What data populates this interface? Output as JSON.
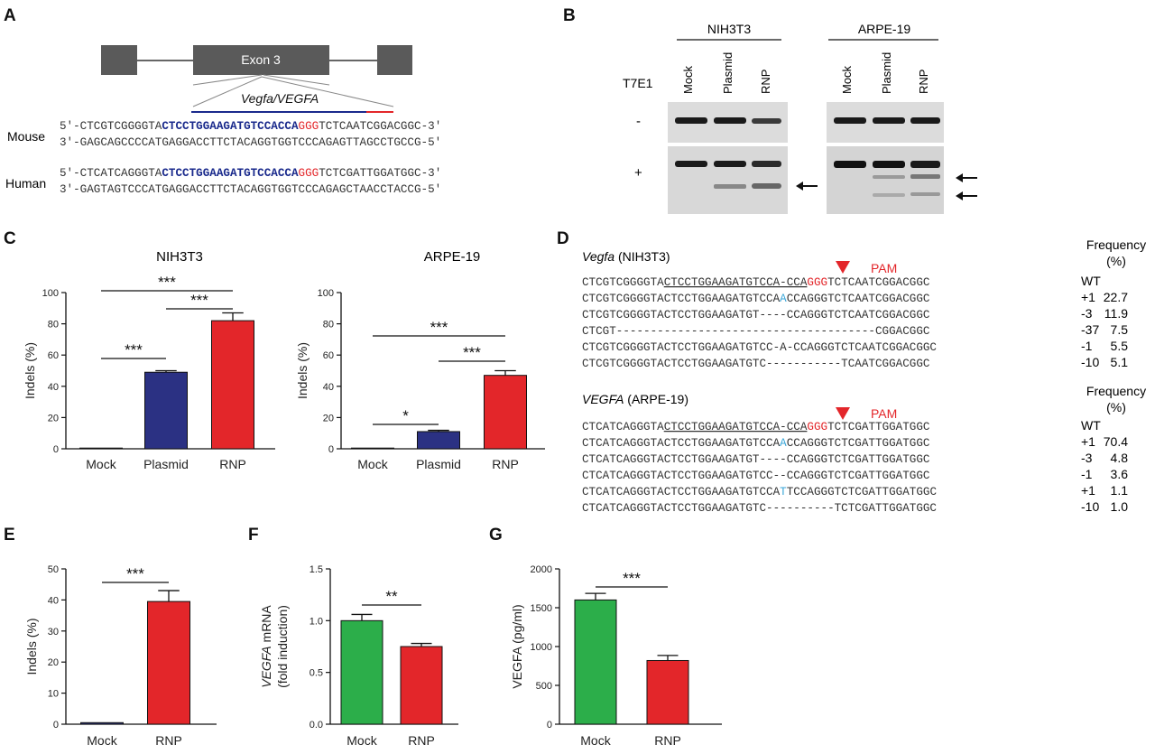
{
  "panel_labels": [
    "A",
    "B",
    "C",
    "D",
    "E",
    "F",
    "G"
  ],
  "colors": {
    "blue": "#2b3183",
    "red": "#e3262a",
    "green": "#2cae4a",
    "seq_blue": "#1a2a8c",
    "pam_red": "#e3262a",
    "insert_blue": "#3aa6d8",
    "exon_gray": "#5a5a5a"
  },
  "panelA": {
    "exon_label": "Exon 3",
    "gene_label": "Vegfa/VEGFA",
    "species": [
      "Mouse",
      "Human"
    ],
    "mouse": {
      "top": {
        "prefix": "5′-CTCGTCGGGGTA",
        "target": "CTCCTGGAAGATGTCCACCA",
        "pam": "GGG",
        "suffix": "TCTCAATCGGACGGC-3′"
      },
      "bottom": "3′-GAGCAGCCCCATGAGGACCTTCTACAGGTGGTCCCAGAGTTAGCCTGCCG-5′"
    },
    "human": {
      "top": {
        "prefix": "5′-CTCATCAGGGTA",
        "target": "CTCCTGGAAGATGTCCACCA",
        "pam": "GGG",
        "suffix": "TCTCGATTGGATGGC-3′"
      },
      "bottom": "3′-GAGTAGTCCCATGAGGACCTTCTACAGGTGGTCCCAGAGCTAACCTACCG-5′"
    }
  },
  "panelB": {
    "cell_lines": [
      "NIH3T3",
      "ARPE-19"
    ],
    "lanes": [
      "Mock",
      "Plasmid",
      "RNP"
    ],
    "enzyme_label": "T7E1",
    "rows": [
      "-",
      "+"
    ],
    "arrow_glyph": "←"
  },
  "panelD": {
    "mouse_title": {
      "gene": "Vegfa",
      "cell": " (NIH3T3)"
    },
    "human_title": {
      "gene": "VEGFA",
      "cell": " (ARPE-19)"
    },
    "pam_label": "PAM",
    "freq_header": [
      "Frequency",
      "(%)"
    ],
    "mouse_rows": [
      {
        "pre": "CTCGTCGGGGTA",
        "target": "CTCCTGGAAGATGTCCA-CCA",
        "pam": "GGG",
        "post": "TCTCAATCGGACGGC",
        "indel": "WT",
        "freq": ""
      },
      {
        "pre": "CTCGTCGGGGTACTCCTGGAAGATGTCCA",
        "ins": "A",
        "post": "CCAGGGTCTCAATCGGACGGC",
        "indel": "+1",
        "freq": "22.7"
      },
      {
        "pre": "CTCGTCGGGGTACTCCTGGAAGATGT----CCAGGGTCTCAATCGGACGGC",
        "indel": "-3",
        "freq": "11.9"
      },
      {
        "pre": "CTCGT--------------------------------------CGGACGGC",
        "indel": "-37",
        "freq": "7.5"
      },
      {
        "pre": "CTCGTCGGGGTACTCCTGGAAGATGTCC-A-CCAGGGTCTCAATCGGACGGC",
        "indel": "-1",
        "freq": "5.5"
      },
      {
        "pre": "CTCGTCGGGGTACTCCTGGAAGATGTC-----------TCAATCGGACGGC",
        "indel": "-10",
        "freq": "5.1"
      }
    ],
    "human_rows": [
      {
        "pre": "CTCATCAGGGTA",
        "target": "CTCCTGGAAGATGTCCA-CCA",
        "pam": "GGG",
        "post": "TCTCGATTGGATGGC",
        "indel": "WT",
        "freq": ""
      },
      {
        "pre": "CTCATCAGGGTACTCCTGGAAGATGTCCA",
        "ins": "A",
        "post": "CCAGGGTCTCGATTGGATGGC",
        "indel": "+1",
        "freq": "70.4"
      },
      {
        "pre": "CTCATCAGGGTACTCCTGGAAGATGT----CCAGGGTCTCGATTGGATGGC",
        "indel": "-3",
        "freq": "4.8"
      },
      {
        "pre": "CTCATCAGGGTACTCCTGGAAGATGTCC--CCAGGGTCTCGATTGGATGGC",
        "indel": "-1",
        "freq": "3.6"
      },
      {
        "pre": "CTCATCAGGGTACTCCTGGAAGATGTCCA",
        "ins": "T",
        "post": "TCCAGGGTCTCGATTGGATGGC",
        "indel": "+1",
        "freq": "1.1"
      },
      {
        "pre": "CTCATCAGGGTACTCCTGGAAGATGTC----------TCTCGATTGGATGGC",
        "indel": "-10",
        "freq": "1.0"
      }
    ]
  },
  "chart_data": [
    {
      "id": "C-left",
      "type": "bar",
      "title": "NIH3T3",
      "ylabel": "Indels (%)",
      "categories": [
        "Mock",
        "Plasmid",
        "RNP"
      ],
      "values": [
        0,
        49,
        82
      ],
      "errors": [
        0,
        1,
        5
      ],
      "ylim": [
        0,
        100
      ],
      "yticks": [
        0,
        20,
        40,
        60,
        80,
        100
      ],
      "colors": [
        "#2b3183",
        "#2b3183",
        "#e3262a"
      ],
      "significance": [
        {
          "from": 0,
          "to": 1,
          "label": "***"
        },
        {
          "from": 1,
          "to": 2,
          "label": "***"
        },
        {
          "from": 0,
          "to": 2,
          "label": "***"
        }
      ]
    },
    {
      "id": "C-right",
      "type": "bar",
      "title": "ARPE-19",
      "ylabel": "Indels (%)",
      "categories": [
        "Mock",
        "Plasmid",
        "RNP"
      ],
      "values": [
        0.3,
        11,
        47
      ],
      "errors": [
        0.2,
        0.8,
        3
      ],
      "ylim": [
        0,
        100
      ],
      "yticks": [
        0,
        20,
        40,
        60,
        80,
        100
      ],
      "colors": [
        "#2b3183",
        "#2b3183",
        "#e3262a"
      ],
      "significance": [
        {
          "from": 0,
          "to": 1,
          "label": "*"
        },
        {
          "from": 1,
          "to": 2,
          "label": "***"
        },
        {
          "from": 0,
          "to": 2,
          "label": "***"
        }
      ]
    },
    {
      "id": "E",
      "type": "bar",
      "title": "",
      "ylabel": "Indels (%)",
      "categories": [
        "Mock",
        "RNP"
      ],
      "values": [
        0.5,
        39.5
      ],
      "errors": [
        0.3,
        3.5
      ],
      "ylim": [
        0,
        50
      ],
      "yticks": [
        0,
        10,
        20,
        30,
        40,
        50
      ],
      "colors": [
        "#2b3183",
        "#e3262a"
      ],
      "significance": [
        {
          "from": 0,
          "to": 1,
          "label": "***"
        }
      ]
    },
    {
      "id": "F",
      "type": "bar",
      "title": "",
      "ylabel": "VEGFA mRNA (fold induction)",
      "categories": [
        "Mock",
        "RNP"
      ],
      "values": [
        1.0,
        0.75
      ],
      "errors": [
        0.06,
        0.03
      ],
      "ylim": [
        0,
        1.5
      ],
      "yticks": [
        0.0,
        0.5,
        1.0,
        1.5
      ],
      "ytick_labels": [
        "0.0",
        "0.5",
        "1.0",
        "1.5"
      ],
      "colors": [
        "#2cae4a",
        "#e3262a"
      ],
      "significance": [
        {
          "from": 0,
          "to": 1,
          "label": "**"
        }
      ]
    },
    {
      "id": "G",
      "type": "bar",
      "title": "",
      "ylabel": "VEGFA (pg/ml)",
      "categories": [
        "Mock",
        "RNP"
      ],
      "values": [
        1600,
        820
      ],
      "errors": [
        85,
        65
      ],
      "ylim": [
        0,
        2000
      ],
      "yticks": [
        0,
        500,
        1000,
        1500,
        2000
      ],
      "colors": [
        "#2cae4a",
        "#e3262a"
      ],
      "significance": [
        {
          "from": 0,
          "to": 1,
          "label": "***"
        }
      ]
    }
  ]
}
